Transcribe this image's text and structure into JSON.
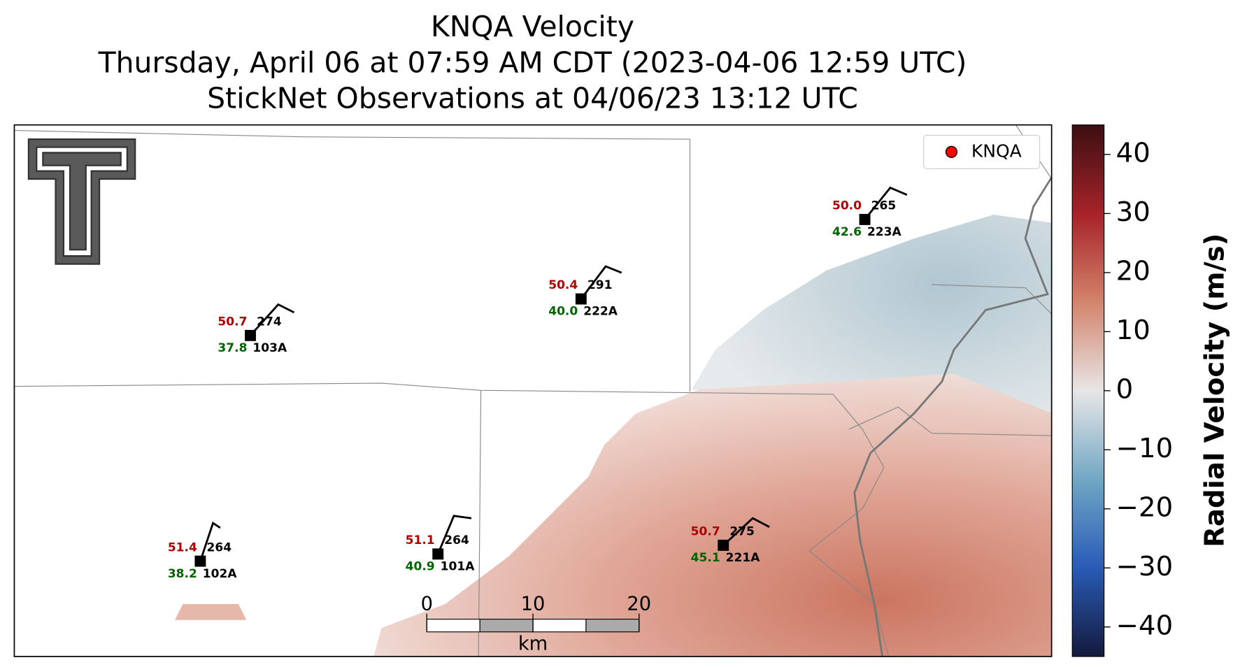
{
  "title": [
    "KNQA Velocity",
    "Thursday, April 06 at 07:59 AM CDT (2023-04-06 12:59 UTC)",
    "StickNet Observations at 04/06/23 13:12 UTC"
  ],
  "legend": {
    "label": "KNQA",
    "color": "#ff0000"
  },
  "stations": [
    {
      "id": "103A",
      "temperature": "50.7",
      "direction": "274",
      "dewpoint": "37.8"
    },
    {
      "id": "222A",
      "temperature": "50.4",
      "direction": "291",
      "dewpoint": "40.0"
    },
    {
      "id": "223A",
      "temperature": "50.0",
      "direction": "265",
      "dewpoint": "42.6"
    },
    {
      "id": "102A",
      "temperature": "51.4",
      "direction": "264",
      "dewpoint": "38.2"
    },
    {
      "id": "101A",
      "temperature": "51.1",
      "direction": "264",
      "dewpoint": "40.9"
    },
    {
      "id": "221A",
      "temperature": "50.7",
      "direction": "275",
      "dewpoint": "45.1"
    }
  ],
  "colorbar": {
    "label": "Radial Velocity (m/s)",
    "lim": [
      -45,
      45
    ],
    "ticks": [
      40,
      30,
      20,
      10,
      0,
      {
        "value": -10,
        "label": "−10"
      },
      {
        "value": -20,
        "label": "−20"
      },
      {
        "value": -30,
        "label": "−30"
      },
      {
        "value": -40,
        "label": "−40"
      }
    ]
  },
  "scale_bar": {
    "ticks": [
      0,
      10,
      20
    ],
    "unit": "km"
  }
}
